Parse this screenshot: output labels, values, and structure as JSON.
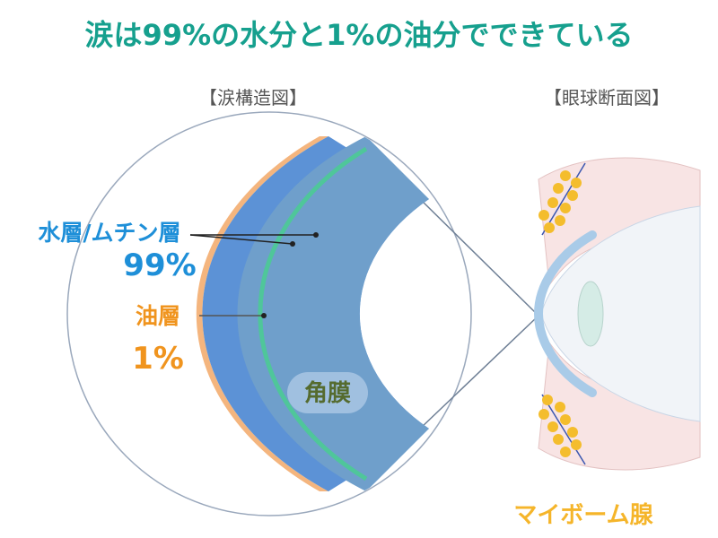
{
  "title": "涙は99%の水分と1%の油分でできている",
  "tear_structure": {
    "heading": "【涙構造図】",
    "water_layer": {
      "label": "水層/ムチン層",
      "percent": "99%"
    },
    "oil_layer": {
      "label": "油層",
      "percent": "1%"
    },
    "cornea_label": "角膜"
  },
  "eye_section": {
    "heading": "【眼球断面図】",
    "gland_label": "マイボーム腺"
  },
  "colors": {
    "title": "#16a08e",
    "water_label": "#1e8fd8",
    "oil_label": "#f0941e",
    "gland_label": "#f5b52a",
    "water_layer": "#5c92d6",
    "mucin_line": "#4fc69a",
    "cornea": "#6f9fcb",
    "oil_layer": "#f4b57e",
    "gland_dot": "#f4bd2d"
  }
}
